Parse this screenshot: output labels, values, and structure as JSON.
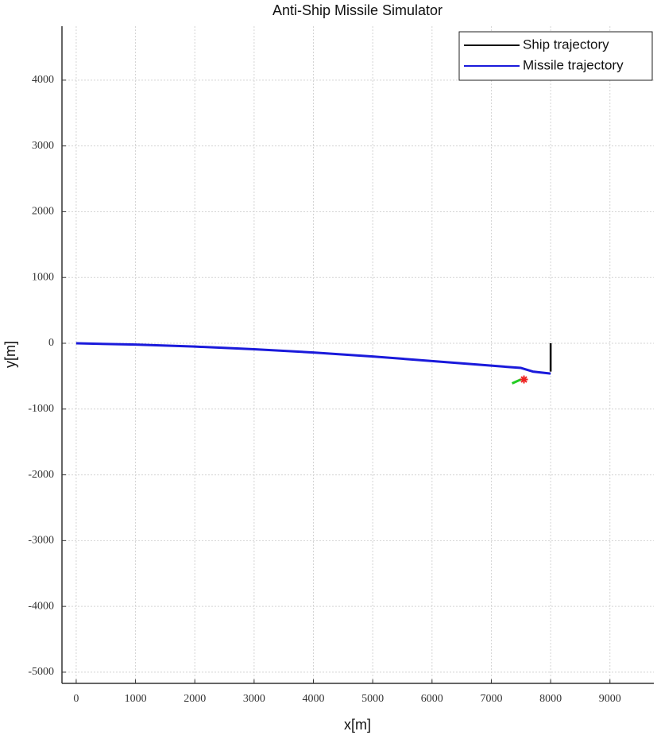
{
  "chart_data": {
    "type": "line",
    "title": "Anti-Ship Missile Simulator",
    "x_label": "x[m]",
    "y_label": "y[m]",
    "xlim": [
      -240,
      9740
    ],
    "ylim": [
      -5170,
      4820
    ],
    "xticks": [
      0,
      1000,
      2000,
      3000,
      4000,
      5000,
      6000,
      7000,
      8000,
      9000
    ],
    "yticks": [
      -5000,
      -4000,
      -3000,
      -2000,
      -1000,
      0,
      1000,
      2000,
      3000,
      4000
    ],
    "grid": true,
    "legend": "upper right",
    "series": [
      {
        "name": "Ship trajectory",
        "color": "#000000",
        "width": 2.5,
        "x": [
          8000,
          8000
        ],
        "values": [
          0,
          -430
        ]
      },
      {
        "name": "Missile trajectory",
        "color": "#1a1adb",
        "width": 3,
        "x": [
          0,
          500,
          1000,
          2000,
          3000,
          4000,
          5000,
          6000,
          7000,
          7500,
          7700,
          8000
        ],
        "values": [
          0,
          -10,
          -20,
          -50,
          -90,
          -140,
          -200,
          -270,
          -340,
          -375,
          -430,
          -460
        ]
      },
      {
        "color": "#22cc22",
        "width": 3,
        "x": [
          7350,
          7500
        ],
        "values": [
          -610,
          -550
        ]
      },
      {
        "color": "#ee2222",
        "marker": "asterisk",
        "x": [
          7550
        ],
        "values": [
          -550
        ]
      }
    ]
  }
}
